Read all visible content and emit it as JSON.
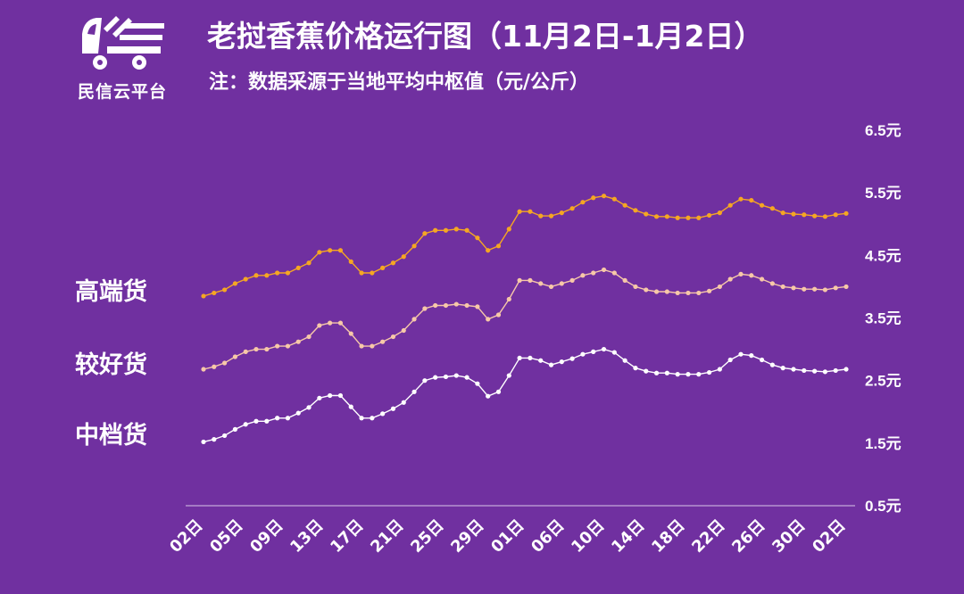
{
  "logo": {
    "text": "民信云平台",
    "icon": "truck-logo-icon"
  },
  "header": {
    "title": "老挝香蕉价格运行图（11月2日-1月2日）",
    "subtitle": "注：数据采源于当地平均中枢值（元/公斤）"
  },
  "colors": {
    "background": "#7030A0",
    "high": "#F5A623",
    "good": "#F7C8A8",
    "mid": "#FFFFFF",
    "axis": "#D9C6E8"
  },
  "chart_data": {
    "type": "line",
    "title": "老挝香蕉价格运行图（11月2日-1月2日）",
    "ylabel": "",
    "xlabel": "",
    "ylim": [
      0.5,
      6.5
    ],
    "y_ticks": [
      "6.5元",
      "5.5元",
      "4.5元",
      "3.5元",
      "2.5元",
      "1.5元",
      "0.5元"
    ],
    "y_tick_values": [
      6.5,
      5.5,
      4.5,
      3.5,
      2.5,
      1.5,
      0.5
    ],
    "x_ticks": [
      "02日",
      "05日",
      "09日",
      "13日",
      "17日",
      "21日",
      "25日",
      "29日",
      "01日",
      "06日",
      "10日",
      "14日",
      "18日",
      "22日",
      "26日",
      "30日",
      "02日"
    ],
    "grid": false,
    "series": [
      {
        "name": "高端货",
        "values": [
          3.85,
          3.9,
          3.95,
          4.05,
          4.12,
          4.18,
          4.18,
          4.22,
          4.22,
          4.3,
          4.38,
          4.55,
          4.58,
          4.58,
          4.4,
          4.22,
          4.22,
          4.3,
          4.38,
          4.48,
          4.65,
          4.85,
          4.9,
          4.9,
          4.92,
          4.9,
          4.78,
          4.58,
          4.65,
          4.92,
          5.2,
          5.2,
          5.13,
          5.13,
          5.18,
          5.25,
          5.35,
          5.42,
          5.45,
          5.4,
          5.3,
          5.22,
          5.16,
          5.12,
          5.12,
          5.1,
          5.1,
          5.1,
          5.14,
          5.18,
          5.3,
          5.4,
          5.38,
          5.3,
          5.25,
          5.18,
          5.16,
          5.15,
          5.13,
          5.12,
          5.15,
          5.17
        ]
      },
      {
        "name": "较好货",
        "values": [
          2.68,
          2.72,
          2.78,
          2.88,
          2.96,
          3.0,
          3.0,
          3.05,
          3.05,
          3.12,
          3.2,
          3.38,
          3.42,
          3.42,
          3.25,
          3.05,
          3.05,
          3.12,
          3.2,
          3.3,
          3.48,
          3.65,
          3.7,
          3.7,
          3.72,
          3.7,
          3.68,
          3.48,
          3.55,
          3.8,
          4.1,
          4.1,
          4.05,
          4.0,
          4.05,
          4.1,
          4.18,
          4.22,
          4.27,
          4.22,
          4.1,
          4.0,
          3.95,
          3.92,
          3.92,
          3.9,
          3.9,
          3.9,
          3.93,
          4.0,
          4.12,
          4.2,
          4.18,
          4.12,
          4.05,
          4.0,
          3.98,
          3.96,
          3.96,
          3.95,
          3.98,
          4.0
        ]
      },
      {
        "name": "中档货",
        "values": [
          1.52,
          1.56,
          1.62,
          1.72,
          1.8,
          1.85,
          1.85,
          1.9,
          1.9,
          1.98,
          2.07,
          2.22,
          2.26,
          2.26,
          2.08,
          1.9,
          1.9,
          1.97,
          2.05,
          2.15,
          2.32,
          2.5,
          2.55,
          2.56,
          2.58,
          2.55,
          2.45,
          2.25,
          2.32,
          2.58,
          2.86,
          2.86,
          2.82,
          2.75,
          2.8,
          2.85,
          2.92,
          2.96,
          3.0,
          2.95,
          2.82,
          2.7,
          2.65,
          2.62,
          2.62,
          2.6,
          2.6,
          2.6,
          2.63,
          2.68,
          2.83,
          2.92,
          2.9,
          2.83,
          2.75,
          2.7,
          2.68,
          2.66,
          2.65,
          2.64,
          2.66,
          2.68
        ]
      }
    ]
  }
}
